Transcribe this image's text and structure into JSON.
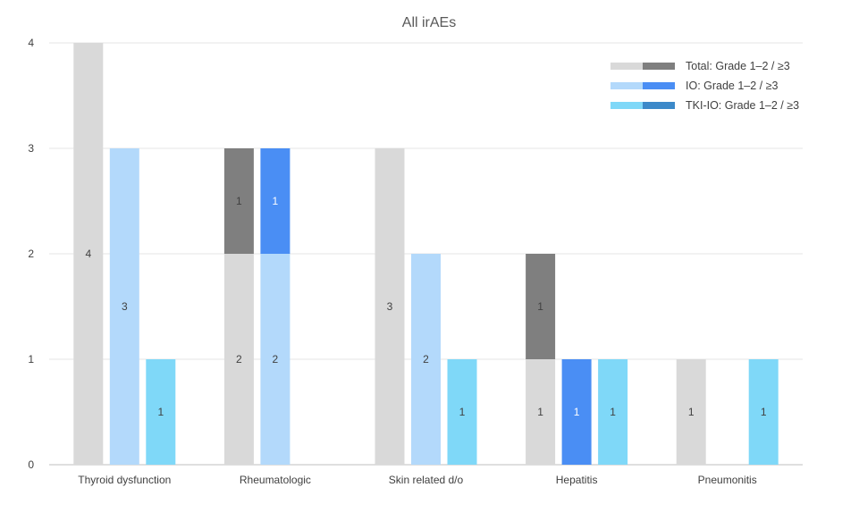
{
  "chart_data": {
    "type": "bar",
    "stacked": true,
    "title": "All irAEs",
    "xlabel": "",
    "ylabel": "",
    "ylim": [
      0,
      4
    ],
    "yticks": [
      0,
      1,
      2,
      3,
      4
    ],
    "grid": true,
    "legend_position": "top-right",
    "categories": [
      "Thyroid dysfunction",
      "Rheumatologic",
      "Skin related d/o",
      "Hepatitis",
      "Pneumonitis"
    ],
    "groups": [
      {
        "legend": "Total: Grade 1–2 / ≥3",
        "colors": {
          "grade_1_2": "#d9d9d9",
          "grade_3_plus": "#7f7f7f"
        },
        "grade_1_2": [
          4,
          2,
          3,
          1,
          1
        ],
        "grade_3_plus": [
          0,
          1,
          0,
          1,
          0
        ]
      },
      {
        "legend": "IO: Grade 1–2 / ≥3",
        "colors": {
          "grade_1_2": "#b3d9fb",
          "grade_3_plus": "#4a8ef4"
        },
        "grade_1_2": [
          3,
          2,
          2,
          0,
          0
        ],
        "grade_3_plus": [
          0,
          1,
          0,
          1,
          0
        ]
      },
      {
        "legend": "TKI-IO: Grade 1–2 / ≥3",
        "colors": {
          "grade_1_2": "#7fd8f8",
          "grade_3_plus": "#3c89c9"
        },
        "grade_1_2": [
          1,
          0,
          1,
          1,
          1
        ],
        "grade_3_plus": [
          0,
          0,
          0,
          0,
          0
        ]
      }
    ]
  }
}
